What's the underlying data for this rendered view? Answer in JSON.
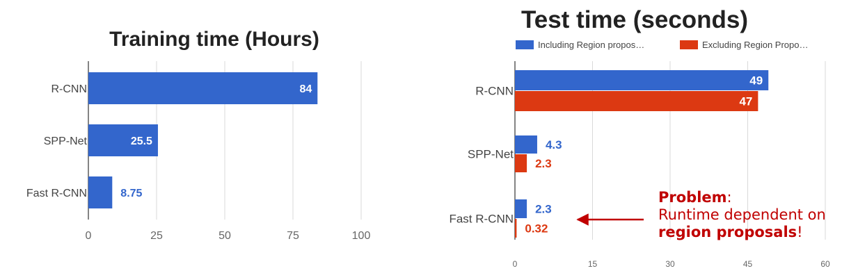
{
  "chart_data": [
    {
      "type": "bar",
      "orientation": "horizontal",
      "title": "Training time (Hours)",
      "categories": [
        "R-CNN",
        "SPP-Net",
        "Fast R-CNN"
      ],
      "series": [
        {
          "values": [
            84,
            25.5,
            8.75
          ],
          "color": "#3366cc",
          "labels": [
            "84",
            "25.5",
            "8.75"
          ]
        }
      ],
      "xlim": [
        0,
        100
      ],
      "xticks": [
        "0",
        "25",
        "50",
        "75",
        "100"
      ],
      "grid": true,
      "legend": "none"
    },
    {
      "type": "bar",
      "orientation": "horizontal",
      "title": "Test time (seconds)",
      "categories": [
        "R-CNN",
        "SPP-Net",
        "Fast R-CNN"
      ],
      "series": [
        {
          "name": "Including Region propos…",
          "values": [
            49,
            4.3,
            2.3
          ],
          "color": "#3366cc",
          "labels": [
            "49",
            "4.3",
            "2.3"
          ]
        },
        {
          "name": "Excluding Region Propo…",
          "values": [
            47,
            2.3,
            0.32
          ],
          "color": "#dc3912",
          "labels": [
            "47",
            "2.3",
            "0.32"
          ]
        }
      ],
      "xlim": [
        0,
        60
      ],
      "xticks": [
        "0",
        "15",
        "30",
        "45",
        "60"
      ],
      "grid": true,
      "legend": "top"
    }
  ],
  "annotation": {
    "problem_word": "Problem",
    "colon": ":",
    "line2": "Runtime dependent on",
    "line3_bold": "region proposals",
    "line3_tail": "!"
  },
  "colors": {
    "annotation": "#c00000",
    "grid": "#d9d9d9",
    "axis": "#333333"
  }
}
